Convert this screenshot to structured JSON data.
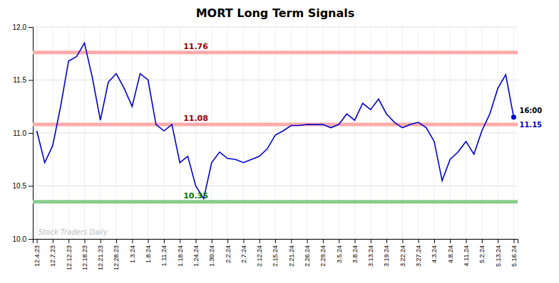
{
  "chart_data": {
    "type": "line",
    "title": "MORT Long Term Signals",
    "categories": [
      "12.4.23",
      null,
      "12.7.23",
      null,
      "12.12.23",
      null,
      "12.18.23",
      null,
      "12.21.23",
      null,
      "12.28.23",
      null,
      "1.3.24",
      null,
      "1.8.24",
      null,
      "1.11.24",
      null,
      "1.18.24",
      null,
      "1.24.24",
      null,
      "1.30.24",
      null,
      "2.2.24",
      null,
      "2.7.24",
      null,
      "2.12.24",
      null,
      "2.15.24",
      null,
      "2.21.24",
      null,
      "2.26.24",
      null,
      "2.29.24",
      null,
      "3.5.24",
      null,
      "3.8.24",
      null,
      "3.13.24",
      null,
      "3.19.24",
      null,
      "3.22.24",
      null,
      "3.27.24",
      null,
      "4.3.24",
      null,
      "4.8.24",
      null,
      "4.11.24",
      null,
      "5.2.24",
      null,
      "5.13.24",
      null,
      "5.16.24"
    ],
    "values": [
      11.02,
      10.72,
      10.88,
      11.25,
      11.68,
      11.72,
      11.85,
      11.52,
      11.12,
      11.48,
      11.56,
      11.42,
      11.25,
      11.56,
      11.5,
      11.08,
      11.02,
      11.08,
      10.72,
      10.78,
      10.5,
      10.38,
      10.72,
      10.82,
      10.76,
      10.75,
      10.72,
      10.75,
      10.78,
      10.85,
      10.98,
      11.02,
      11.07,
      11.07,
      11.08,
      11.08,
      11.08,
      11.05,
      11.08,
      11.18,
      11.12,
      11.28,
      11.22,
      11.32,
      11.18,
      11.1,
      11.05,
      11.08,
      11.1,
      11.05,
      10.92,
      10.55,
      10.75,
      10.82,
      10.92,
      10.8,
      11.02,
      11.18,
      11.42,
      11.55,
      11.15
    ],
    "color": "#0000cc",
    "ylim": [
      10.0,
      12.0
    ],
    "yticks": [
      {
        "value": 10.0,
        "label": "10.0"
      },
      10.5,
      {
        "value": 11.0,
        "label": "11.0"
      },
      11.5,
      {
        "value": 12.0,
        "label": "12.0"
      }
    ],
    "grid": true,
    "reference_lines": [
      {
        "value": 11.76,
        "label": "11.76",
        "color": "#ffaaaa",
        "label_color": "#990000"
      },
      {
        "value": 11.08,
        "label": "11.08",
        "color": "#ffaaaa",
        "label_color": "#990000"
      },
      {
        "value": 10.35,
        "label": "10.35",
        "color": "#88cc88",
        "label_color": "#007700"
      }
    ],
    "annotations": [
      {
        "text": "16:00",
        "color": "#000000"
      },
      {
        "text": "11.15",
        "value": 11.15,
        "color": "#0000cc"
      }
    ],
    "watermark": "Stock Traders Daily",
    "watermark_color": "#bbbbbb"
  }
}
